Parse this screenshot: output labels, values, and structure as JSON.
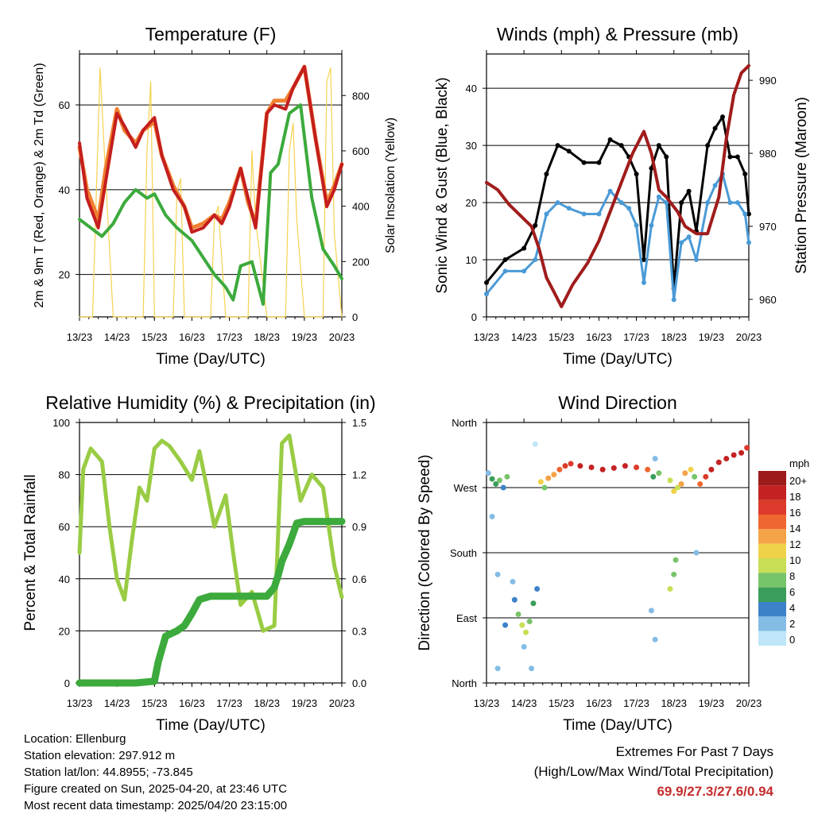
{
  "footer": {
    "location": "Location: Ellenburg",
    "elevation": "Station elevation: 297.912 m",
    "latlon": "Station lat/lon: 44.8955; -73.845",
    "created": "Figure created on Sun, 2025-04-20, at 23:46 UTC",
    "recent": "Most recent data timestamp: 2025/04/20 23:15:00"
  },
  "extremes": {
    "title": "Extremes For Past 7 Days",
    "subtitle": "(High/Low/Max Wind/Total Precipitation)",
    "values": "69.9/27.3/27.6/0.94"
  },
  "colors": {
    "temp_red": "#c41e1e",
    "temp_orange": "#f08030",
    "dewpoint_green": "#3caa3c",
    "solar_yellow": "#f5d250",
    "gust_black": "#000000",
    "wind_blue": "#4a9ad6",
    "pressure_maroon": "#a01c1c",
    "rh_green": "#99cc44",
    "precip_green": "#3caa3c"
  },
  "chart_data": [
    {
      "type": "line",
      "title": "Temperature (F)",
      "xlabel": "Time (Day/UTC)",
      "ylabel": "2m & 9m T (Red, Orange) & 2m Td (Green)",
      "y2label": "Solar Insolation (Yellow)",
      "x_ticks": [
        "13/23",
        "14/23",
        "15/23",
        "16/23",
        "17/23",
        "18/23",
        "19/23",
        "20/23"
      ],
      "ylim": [
        10,
        72
      ],
      "y_ticks": [
        20,
        40,
        60
      ],
      "y2lim": [
        0,
        950
      ],
      "y2_ticks": [
        0,
        200,
        400,
        600,
        800
      ],
      "grid": true,
      "series": [
        {
          "name": "2m T",
          "x": [
            0,
            0.2,
            0.5,
            0.7,
            1.0,
            1.2,
            1.5,
            1.7,
            2.0,
            2.2,
            2.5,
            2.8,
            3.0,
            3.3,
            3.6,
            3.8,
            4.0,
            4.3,
            4.5,
            4.7,
            5.0,
            5.2,
            5.5,
            5.7,
            6.0,
            6.3,
            6.6,
            6.8,
            7.0
          ],
          "y": [
            51,
            38,
            31,
            42,
            58,
            55,
            50,
            54,
            57,
            48,
            40,
            36,
            30,
            31,
            34,
            32,
            36,
            45,
            38,
            31,
            58,
            60,
            59,
            64,
            69,
            52,
            36,
            40,
            46
          ]
        },
        {
          "name": "9m T",
          "x": [
            0,
            0.2,
            0.5,
            0.7,
            1.0,
            1.2,
            1.5,
            1.7,
            2.0,
            2.2,
            2.5,
            2.8,
            3.0,
            3.3,
            3.6,
            3.8,
            4.0,
            4.3,
            4.5,
            4.7,
            5.0,
            5.2,
            5.5,
            5.7,
            6.0,
            6.3,
            6.6,
            6.8,
            7.0
          ],
          "y": [
            50,
            40,
            33,
            45,
            59,
            54,
            51,
            54,
            56,
            48,
            41,
            36,
            31,
            32,
            34,
            33,
            37,
            45,
            37,
            32,
            58,
            61,
            61,
            64,
            69,
            52,
            37,
            41,
            46
          ]
        },
        {
          "name": "2m Td",
          "x": [
            0,
            0.3,
            0.6,
            0.9,
            1.2,
            1.5,
            1.8,
            2.0,
            2.3,
            2.6,
            3.0,
            3.3,
            3.6,
            3.9,
            4.1,
            4.3,
            4.6,
            4.9,
            5.1,
            5.3,
            5.6,
            5.9,
            6.2,
            6.5,
            6.8,
            7.0
          ],
          "y": [
            33,
            31,
            29,
            32,
            37,
            40,
            38,
            39,
            34,
            31,
            28,
            24,
            20,
            17,
            14,
            22,
            23,
            13,
            44,
            46,
            58,
            60,
            38,
            26,
            22,
            19
          ]
        },
        {
          "name": "Solar Insolation",
          "x": [
            0,
            0.2,
            0.35,
            0.45,
            0.55,
            0.7,
            0.9,
            1.0,
            1.1,
            1.3,
            1.5,
            1.7,
            1.8,
            1.9,
            2.0,
            2.2,
            2.5,
            2.6,
            2.7,
            2.8,
            3.0,
            3.2,
            3.5,
            3.6,
            3.7,
            3.9,
            4.0,
            4.2,
            4.5,
            4.6,
            4.7,
            5.0,
            5.2,
            5.5,
            5.6,
            5.7,
            5.8,
            6.0,
            6.2,
            6.5,
            6.6,
            6.7,
            6.8,
            7.0
          ],
          "y2": [
            0,
            0,
            0,
            450,
            900,
            500,
            0,
            0,
            0,
            0,
            0,
            0,
            600,
            850,
            0,
            0,
            0,
            450,
            500,
            0,
            0,
            0,
            0,
            350,
            400,
            0,
            0,
            0,
            0,
            600,
            350,
            0,
            0,
            0,
            600,
            700,
            350,
            0,
            0,
            0,
            850,
            900,
            300,
            0
          ]
        }
      ]
    },
    {
      "type": "scatter",
      "title": "Winds (mph) & Pressure (mb)",
      "xlabel": "Time (Day/UTC)",
      "ylabel": "Sonic Wind & Gust (Blue, Black)",
      "y2label": "Station Pressure (Maroon)",
      "x_ticks": [
        "13/23",
        "14/23",
        "15/23",
        "16/23",
        "17/23",
        "18/23",
        "19/23",
        "20/23"
      ],
      "ylim": [
        0,
        46
      ],
      "y_ticks": [
        0,
        10,
        20,
        30,
        40
      ],
      "y2lim": [
        957.6,
        993.6
      ],
      "y2_ticks": [
        960,
        970,
        980,
        990
      ],
      "grid": true,
      "series": [
        {
          "name": "Gust",
          "x": [
            0,
            0.5,
            1.0,
            1.3,
            1.6,
            1.9,
            2.2,
            2.6,
            3.0,
            3.3,
            3.6,
            3.8,
            4.0,
            4.2,
            4.4,
            4.6,
            4.8,
            5.0,
            5.2,
            5.4,
            5.6,
            5.9,
            6.1,
            6.3,
            6.5,
            6.7,
            6.9,
            7.0
          ],
          "y": [
            6,
            10,
            12,
            16,
            25,
            30,
            29,
            27,
            27,
            31,
            30,
            28,
            25,
            10,
            26,
            30,
            28,
            5,
            20,
            22,
            15,
            30,
            33,
            35,
            28,
            28,
            25,
            18
          ]
        },
        {
          "name": "Wind",
          "x": [
            0,
            0.5,
            1.0,
            1.3,
            1.6,
            1.9,
            2.2,
            2.6,
            3.0,
            3.3,
            3.6,
            3.8,
            4.0,
            4.2,
            4.4,
            4.6,
            4.8,
            5.0,
            5.2,
            5.4,
            5.6,
            5.9,
            6.1,
            6.3,
            6.5,
            6.7,
            6.9,
            7.0
          ],
          "y": [
            4,
            8,
            8,
            10,
            18,
            20,
            19,
            18,
            18,
            22,
            20,
            19,
            16,
            6,
            16,
            21,
            20,
            3,
            13,
            14,
            10,
            20,
            23,
            25,
            20,
            20,
            18,
            13
          ]
        },
        {
          "name": "Pressure",
          "x": [
            0,
            0.3,
            0.6,
            0.8,
            1.0,
            1.2,
            1.4,
            1.6,
            1.8,
            2.0,
            2.3,
            2.7,
            3.0,
            3.3,
            3.6,
            3.9,
            4.1,
            4.2,
            4.4,
            4.6,
            4.8,
            5.1,
            5.3,
            5.6,
            5.9,
            6.2,
            6.4,
            6.6,
            6.8,
            7.0
          ],
          "y2": [
            976,
            975,
            973,
            972,
            971,
            970,
            967,
            963,
            961,
            959,
            962,
            965,
            968,
            972,
            976,
            980,
            982,
            983,
            980,
            975,
            974,
            972,
            970,
            969,
            969,
            974,
            982,
            988,
            991,
            992
          ]
        }
      ]
    },
    {
      "type": "line",
      "title": "Relative Humidity (%) & Precipitation (in)",
      "xlabel": "Time (Day/UTC)",
      "ylabel": "Percent & Total Rainfall",
      "x_ticks": [
        "13/23",
        "14/23",
        "15/23",
        "16/23",
        "17/23",
        "18/23",
        "19/23",
        "20/23"
      ],
      "ylim": [
        0,
        100
      ],
      "y_ticks": [
        0,
        20,
        40,
        60,
        80,
        100
      ],
      "y2lim": [
        0,
        1.5
      ],
      "y2_ticks": [
        "0.0",
        "0.3",
        "0.6",
        "0.9",
        "1.2",
        "1.5"
      ],
      "grid": true,
      "series": [
        {
          "name": "RH",
          "x": [
            0,
            0.1,
            0.3,
            0.6,
            0.8,
            1.0,
            1.2,
            1.4,
            1.6,
            1.8,
            2.0,
            2.2,
            2.4,
            2.7,
            3.0,
            3.2,
            3.4,
            3.6,
            3.9,
            4.1,
            4.3,
            4.6,
            4.9,
            5.2,
            5.4,
            5.6,
            5.9,
            6.2,
            6.5,
            6.8,
            7.0
          ],
          "y": [
            50,
            82,
            90,
            85,
            60,
            40,
            32,
            55,
            75,
            70,
            90,
            93,
            91,
            85,
            78,
            89,
            75,
            60,
            72,
            50,
            30,
            35,
            20,
            22,
            92,
            95,
            70,
            80,
            75,
            45,
            33
          ]
        },
        {
          "name": "Precipitation",
          "x": [
            0,
            0.5,
            1.0,
            1.5,
            2.0,
            2.1,
            2.3,
            2.6,
            2.8,
            3.0,
            3.2,
            3.5,
            4.0,
            4.5,
            5.0,
            5.2,
            5.3,
            5.4,
            5.6,
            5.8,
            6.0,
            6.5,
            7.0
          ],
          "y2": [
            0,
            0,
            0,
            0,
            0.01,
            0.12,
            0.27,
            0.3,
            0.33,
            0.4,
            0.48,
            0.5,
            0.5,
            0.5,
            0.5,
            0.55,
            0.62,
            0.7,
            0.8,
            0.92,
            0.93,
            0.93,
            0.93
          ]
        }
      ]
    },
    {
      "type": "scatter",
      "title": "Wind Direction",
      "xlabel": "Time (Day/UTC)",
      "ylabel": "Direction (Colored By Speed)",
      "x_ticks": [
        "13/23",
        "14/23",
        "15/23",
        "16/23",
        "17/23",
        "18/23",
        "19/23",
        "20/23"
      ],
      "y_ticks": [
        "North",
        "East",
        "South",
        "West",
        "North"
      ],
      "ylim": [
        0,
        360
      ],
      "grid": true,
      "colorbar": {
        "title": "mph",
        "labels": [
          "20+",
          "18",
          "16",
          "14",
          "12",
          "10",
          "8",
          "6",
          "4",
          "2",
          "0"
        ],
        "colors": [
          "#9b1b1b",
          "#c42222",
          "#dc3a2a",
          "#f06630",
          "#f5a347",
          "#f0d24a",
          "#c8de54",
          "#78c46a",
          "#3a9e5a",
          "#3c82c8",
          "#84bce6",
          "#bee6f8"
        ]
      },
      "points": [
        [
          0.05,
          290,
          3
        ],
        [
          0.15,
          282,
          6
        ],
        [
          0.25,
          275,
          7
        ],
        [
          0.35,
          280,
          9
        ],
        [
          0.45,
          270,
          5
        ],
        [
          0.55,
          285,
          8
        ],
        [
          0.15,
          230,
          2
        ],
        [
          0.3,
          150,
          3
        ],
        [
          0.5,
          80,
          4
        ],
        [
          0.3,
          20,
          2
        ],
        [
          0.75,
          115,
          5
        ],
        [
          0.85,
          95,
          8
        ],
        [
          0.95,
          80,
          10
        ],
        [
          1.05,
          70,
          11
        ],
        [
          1.15,
          85,
          8
        ],
        [
          1.25,
          110,
          6
        ],
        [
          1.35,
          130,
          4
        ],
        [
          0.7,
          140,
          3
        ],
        [
          1.0,
          50,
          2
        ],
        [
          1.2,
          20,
          2
        ],
        [
          1.3,
          330,
          1
        ],
        [
          1.45,
          278,
          12
        ],
        [
          1.55,
          270,
          9
        ],
        [
          1.65,
          283,
          14
        ],
        [
          1.8,
          288,
          15
        ],
        [
          1.95,
          295,
          16
        ],
        [
          2.1,
          300,
          18
        ],
        [
          2.25,
          303,
          19
        ],
        [
          2.5,
          300,
          20
        ],
        [
          2.8,
          298,
          20
        ],
        [
          3.1,
          295,
          21
        ],
        [
          3.4,
          297,
          20
        ],
        [
          3.7,
          300,
          20
        ],
        [
          4.0,
          298,
          19
        ],
        [
          4.3,
          295,
          17
        ],
        [
          4.45,
          285,
          6
        ],
        [
          4.6,
          290,
          8
        ],
        [
          4.5,
          310,
          2
        ],
        [
          4.4,
          100,
          3
        ],
        [
          4.5,
          60,
          2
        ],
        [
          4.9,
          280,
          11
        ],
        [
          5.0,
          265,
          13
        ],
        [
          5.1,
          270,
          10
        ],
        [
          5.2,
          275,
          14
        ],
        [
          5.3,
          290,
          15
        ],
        [
          5.45,
          295,
          12
        ],
        [
          5.55,
          285,
          9
        ],
        [
          4.9,
          130,
          10
        ],
        [
          5.0,
          150,
          9
        ],
        [
          5.05,
          170,
          8
        ],
        [
          5.6,
          180,
          3
        ],
        [
          5.7,
          275,
          17
        ],
        [
          5.85,
          285,
          19
        ],
        [
          6.0,
          295,
          20
        ],
        [
          6.2,
          305,
          20
        ],
        [
          6.4,
          310,
          21
        ],
        [
          6.6,
          315,
          21
        ],
        [
          6.8,
          318,
          20
        ],
        [
          6.95,
          325,
          18
        ]
      ]
    }
  ]
}
